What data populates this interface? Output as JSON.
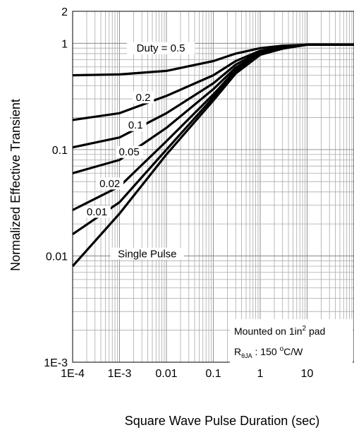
{
  "chart_data": {
    "type": "line",
    "title": "",
    "xlabel": "Square Wave Pulse Duration (sec)",
    "ylabel": "Normalized Effective Transient",
    "xscale": "log",
    "yscale": "log",
    "xlim": [
      0.0001,
      100
    ],
    "ylim": [
      0.001,
      2
    ],
    "grid": true,
    "x_ticks": [
      {
        "value": 0.0001,
        "label": "1E-4"
      },
      {
        "value": 0.001,
        "label": "1E-3"
      },
      {
        "value": 0.01,
        "label": "0.01"
      },
      {
        "value": 0.1,
        "label": "0.1"
      },
      {
        "value": 1,
        "label": "1"
      },
      {
        "value": 10,
        "label": "10"
      }
    ],
    "y_ticks": [
      {
        "value": 0.001,
        "label": "1E-3"
      },
      {
        "value": 0.01,
        "label": "0.01"
      },
      {
        "value": 0.1,
        "label": "0.1"
      },
      {
        "value": 1,
        "label": "1"
      },
      {
        "value": 2,
        "label": "2"
      }
    ],
    "series": [
      {
        "name": "0.5",
        "label": "Duty =  0.5",
        "label_at": [
          0.0076,
          0.9
        ],
        "x": [
          0.0001,
          0.001,
          0.01,
          0.1,
          0.3,
          1,
          3,
          10,
          100
        ],
        "y": [
          0.5,
          0.51,
          0.55,
          0.68,
          0.8,
          0.9,
          0.95,
          0.97,
          0.97
        ]
      },
      {
        "name": "0.2",
        "label": "0.2",
        "label_at": [
          0.0032,
          0.31
        ],
        "x": [
          0.0001,
          0.001,
          0.01,
          0.1,
          0.3,
          1,
          3,
          10,
          100
        ],
        "y": [
          0.19,
          0.22,
          0.32,
          0.5,
          0.68,
          0.85,
          0.93,
          0.97,
          0.97
        ]
      },
      {
        "name": "0.1",
        "label": "0.1",
        "label_at": [
          0.0022,
          0.17
        ],
        "x": [
          0.0001,
          0.001,
          0.01,
          0.1,
          0.3,
          1,
          3,
          10,
          100
        ],
        "y": [
          0.105,
          0.13,
          0.22,
          0.42,
          0.63,
          0.83,
          0.92,
          0.97,
          0.97
        ]
      },
      {
        "name": "0.05",
        "label": "0.05",
        "label_at": [
          0.0016,
          0.095
        ],
        "x": [
          0.0001,
          0.001,
          0.01,
          0.1,
          0.3,
          1,
          3,
          10,
          100
        ],
        "y": [
          0.06,
          0.08,
          0.16,
          0.37,
          0.59,
          0.81,
          0.91,
          0.97,
          0.97
        ]
      },
      {
        "name": "0.02",
        "label": "0.02",
        "label_at": [
          0.00062,
          0.048
        ],
        "x": [
          0.0001,
          0.001,
          0.01,
          0.1,
          0.3,
          1,
          3,
          10,
          100
        ],
        "y": [
          0.027,
          0.045,
          0.12,
          0.33,
          0.56,
          0.8,
          0.9,
          0.97,
          0.97
        ]
      },
      {
        "name": "0.01",
        "label": "0.01",
        "label_at": [
          0.00033,
          0.026
        ],
        "x": [
          0.0001,
          0.001,
          0.01,
          0.1,
          0.3,
          1,
          3,
          10,
          100
        ],
        "y": [
          0.016,
          0.032,
          0.1,
          0.31,
          0.54,
          0.79,
          0.9,
          0.97,
          0.97
        ]
      },
      {
        "name": "Single Pulse",
        "label": "Single Pulse",
        "label_at": [
          0.0039,
          0.0105
        ],
        "x": [
          0.0001,
          0.001,
          0.01,
          0.1,
          0.3,
          1,
          3,
          10,
          100
        ],
        "y": [
          0.008,
          0.025,
          0.09,
          0.29,
          0.52,
          0.78,
          0.89,
          0.97,
          0.97
        ]
      }
    ],
    "annotations": {
      "mounted_text": "Mounted on 1in",
      "mounted_sup": "2",
      "mounted_tail": " pad",
      "r_main": "R",
      "r_sub": "θJA",
      "r_mid": " : 150 ",
      "r_deg": "o",
      "r_tail": "C/W"
    }
  }
}
